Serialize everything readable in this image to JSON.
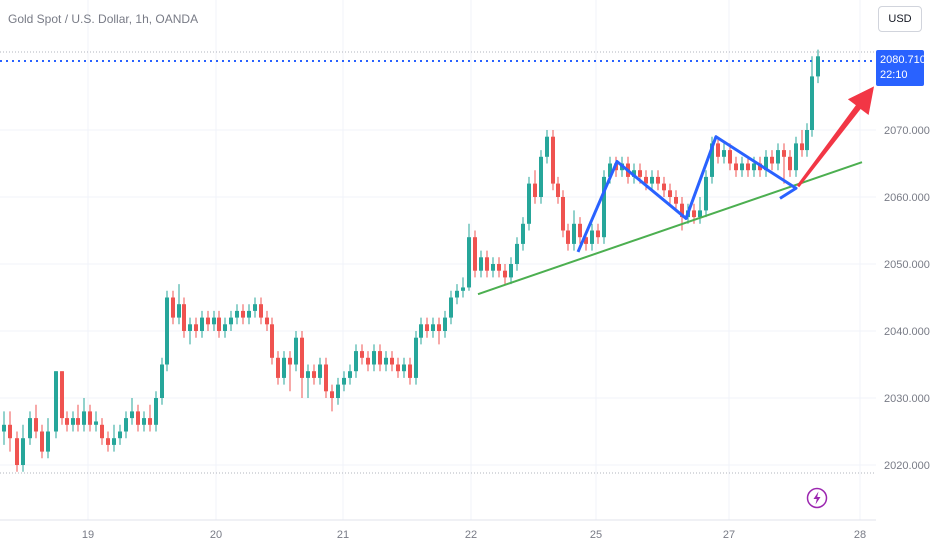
{
  "header": {
    "title": "Gold Spot / U.S. Dollar, 1h, OANDA",
    "currency": "USD"
  },
  "price_tag": {
    "price": "2080.710",
    "countdown": "22:10"
  },
  "icons": {
    "bolt": "lightning-bolt-icon"
  },
  "colors": {
    "up": "#26a69a",
    "down": "#ef5350",
    "price_line": "#2962ff",
    "trendline": "#4caf50",
    "pattern": "#2962ff",
    "arrow": "#f23645"
  },
  "chart_data": {
    "type": "candlestick",
    "x_ticks": [
      {
        "label": "19",
        "t": 88
      },
      {
        "label": "20",
        "t": 216
      },
      {
        "label": "21",
        "t": 343
      },
      {
        "label": "22",
        "t": 471
      },
      {
        "label": "25",
        "t": 596
      },
      {
        "label": "27",
        "t": 729
      },
      {
        "label": "28",
        "t": 860
      }
    ],
    "y_ticks": [
      {
        "label": "2020.000",
        "v": 2020
      },
      {
        "label": "2030.000",
        "v": 2030
      },
      {
        "label": "2040.000",
        "v": 2040
      },
      {
        "label": "2050.000",
        "v": 2050
      },
      {
        "label": "2060.000",
        "v": 2060
      },
      {
        "label": "2070.000",
        "v": 2070
      }
    ],
    "ylim": [
      2012,
      2087
    ],
    "last_price": 2080.71,
    "trendline": [
      [
        478,
        2045.5
      ],
      [
        862,
        2065.2
      ]
    ],
    "zigzag": [
      [
        578,
        2051.8
      ],
      [
        617,
        2065.3
      ],
      [
        686,
        2056.8
      ],
      [
        716,
        2069
      ],
      [
        796,
        2061.3
      ],
      [
        780,
        2059.8
      ]
    ],
    "arrow": {
      "from": [
        798,
        2061.6
      ],
      "to": [
        874,
        2076.5
      ]
    },
    "candles": [
      [
        4,
        2025,
        2026,
        2028,
        2023
      ],
      [
        10,
        2026,
        2024,
        2028,
        2022
      ],
      [
        17,
        2024,
        2020,
        2025,
        2019
      ],
      [
        23,
        2020,
        2024,
        2026,
        2019
      ],
      [
        30,
        2024,
        2027,
        2028,
        2023
      ],
      [
        36,
        2027,
        2025,
        2029,
        2024
      ],
      [
        42,
        2025,
        2022,
        2026,
        2021
      ],
      [
        48,
        2022,
        2025,
        2027,
        2021
      ],
      [
        56,
        2025,
        2034,
        2034,
        2024
      ],
      [
        62,
        2034,
        2027,
        2034,
        2026
      ],
      [
        67,
        2027,
        2026,
        2028,
        2025
      ],
      [
        73,
        2026,
        2027,
        2028,
        2025
      ],
      [
        78,
        2027,
        2026,
        2029,
        2025
      ],
      [
        84,
        2026,
        2028,
        2030,
        2025
      ],
      [
        90,
        2028,
        2026,
        2029,
        2025
      ],
      [
        96,
        2026,
        2026.5,
        2028,
        2025
      ],
      [
        102,
        2026,
        2024,
        2027,
        2023
      ],
      [
        108,
        2024,
        2023,
        2025,
        2022
      ],
      [
        114,
        2023,
        2024,
        2026,
        2022
      ],
      [
        120,
        2024,
        2025,
        2026,
        2023
      ],
      [
        126,
        2025,
        2027,
        2028,
        2024
      ],
      [
        132,
        2027,
        2028,
        2030,
        2026
      ],
      [
        138,
        2028,
        2026,
        2029,
        2025
      ],
      [
        144,
        2026,
        2027,
        2028,
        2025
      ],
      [
        150,
        2027,
        2026,
        2029,
        2025
      ],
      [
        156,
        2026,
        2030,
        2031,
        2025
      ],
      [
        162,
        2030,
        2035,
        2036,
        2029
      ],
      [
        167,
        2035,
        2045,
        2046,
        2034
      ],
      [
        173,
        2045,
        2042,
        2046,
        2041
      ],
      [
        179,
        2042,
        2044,
        2047,
        2041
      ],
      [
        184,
        2044,
        2040,
        2045,
        2039
      ],
      [
        190,
        2040,
        2041,
        2042,
        2038
      ],
      [
        196,
        2041,
        2040,
        2042,
        2039
      ],
      [
        202,
        2040,
        2042,
        2043,
        2039
      ],
      [
        208,
        2042,
        2041,
        2043,
        2040
      ],
      [
        214,
        2041,
        2042,
        2043,
        2040
      ],
      [
        219,
        2042,
        2040,
        2043,
        2039
      ],
      [
        225,
        2040,
        2041,
        2042,
        2039
      ],
      [
        231,
        2041,
        2042,
        2043,
        2040
      ],
      [
        237,
        2042,
        2043,
        2044,
        2041
      ],
      [
        243,
        2043,
        2042,
        2044,
        2041
      ],
      [
        249,
        2042,
        2043,
        2044,
        2041
      ],
      [
        255,
        2043,
        2044,
        2045,
        2042
      ],
      [
        261,
        2044,
        2042,
        2045,
        2041
      ],
      [
        267,
        2042,
        2041,
        2043,
        2040
      ],
      [
        272,
        2041,
        2036,
        2042,
        2035
      ],
      [
        278,
        2036,
        2033,
        2037,
        2032
      ],
      [
        284,
        2033,
        2036,
        2037,
        2032
      ],
      [
        290,
        2036,
        2035,
        2037,
        2031
      ],
      [
        296,
        2035,
        2039,
        2040,
        2034
      ],
      [
        302,
        2039,
        2033,
        2040,
        2030
      ],
      [
        308,
        2033,
        2034,
        2035,
        2030
      ],
      [
        314,
        2034,
        2033,
        2035,
        2032
      ],
      [
        320,
        2033,
        2035,
        2036,
        2032
      ],
      [
        326,
        2035,
        2031,
        2036,
        2030
      ],
      [
        332,
        2031,
        2030,
        2032,
        2028
      ],
      [
        338,
        2030,
        2032,
        2033,
        2029
      ],
      [
        344,
        2032,
        2033,
        2034,
        2031
      ],
      [
        350,
        2033,
        2034,
        2035,
        2032
      ],
      [
        356,
        2034,
        2037,
        2038,
        2033
      ],
      [
        362,
        2037,
        2036,
        2038,
        2035
      ],
      [
        368,
        2036,
        2035,
        2037,
        2034
      ],
      [
        374,
        2035,
        2037,
        2038,
        2034
      ],
      [
        380,
        2037,
        2035,
        2038,
        2034
      ],
      [
        386,
        2035,
        2036,
        2037,
        2034
      ],
      [
        392,
        2036,
        2035,
        2037,
        2034
      ],
      [
        398,
        2035,
        2034,
        2036,
        2033
      ],
      [
        404,
        2034,
        2035,
        2036,
        2033
      ],
      [
        410,
        2035,
        2033,
        2036,
        2032
      ],
      [
        416,
        2033,
        2039,
        2040,
        2032
      ],
      [
        421,
        2039,
        2041,
        2042,
        2038
      ],
      [
        427,
        2041,
        2040,
        2042,
        2039
      ],
      [
        433,
        2040,
        2041,
        2042,
        2039
      ],
      [
        439,
        2041,
        2040,
        2042,
        2038
      ],
      [
        445,
        2040,
        2042,
        2043,
        2039
      ],
      [
        451,
        2042,
        2045,
        2046,
        2041
      ],
      [
        457,
        2045,
        2046,
        2047,
        2044
      ],
      [
        463,
        2046,
        2046.5,
        2048,
        2045
      ],
      [
        469,
        2046.5,
        2054,
        2056,
        2046
      ],
      [
        475,
        2054,
        2049,
        2055,
        2048
      ],
      [
        481,
        2049,
        2051,
        2052,
        2048
      ],
      [
        487,
        2051,
        2049,
        2052,
        2048
      ],
      [
        493,
        2049,
        2050,
        2051,
        2048
      ],
      [
        499,
        2050,
        2049,
        2051,
        2048
      ],
      [
        505,
        2049,
        2048,
        2050,
        2047
      ],
      [
        511,
        2048,
        2050,
        2051,
        2047
      ],
      [
        517,
        2050,
        2053,
        2054,
        2049
      ],
      [
        523,
        2053,
        2056,
        2057,
        2052
      ],
      [
        529,
        2056,
        2062,
        2063,
        2055
      ],
      [
        535,
        2062,
        2060,
        2064,
        2059
      ],
      [
        541,
        2060,
        2066,
        2067,
        2059
      ],
      [
        547,
        2066,
        2069,
        2070,
        2065
      ],
      [
        553,
        2069,
        2062,
        2070,
        2061
      ],
      [
        558,
        2062,
        2060,
        2063,
        2059
      ],
      [
        563,
        2060,
        2055,
        2061,
        2054
      ],
      [
        568,
        2055,
        2053,
        2056,
        2052
      ],
      [
        574,
        2053,
        2056,
        2058,
        2052
      ],
      [
        580,
        2056,
        2054,
        2057,
        2053
      ],
      [
        586,
        2054,
        2053,
        2055,
        2052
      ],
      [
        592,
        2053,
        2055,
        2056,
        2052
      ],
      [
        598,
        2055,
        2054,
        2056,
        2053
      ],
      [
        604,
        2054,
        2063,
        2064,
        2053
      ],
      [
        610,
        2063,
        2065,
        2066,
        2062
      ],
      [
        616,
        2065,
        2064,
        2066,
        2063
      ],
      [
        622,
        2064,
        2065,
        2066,
        2063
      ],
      [
        628,
        2065,
        2063,
        2066,
        2062
      ],
      [
        634,
        2063,
        2064,
        2065,
        2062
      ],
      [
        640,
        2064,
        2063,
        2065,
        2062
      ],
      [
        646,
        2063,
        2062,
        2064,
        2061
      ],
      [
        652,
        2062,
        2063,
        2064,
        2061
      ],
      [
        658,
        2063,
        2062,
        2064,
        2061
      ],
      [
        664,
        2062,
        2061,
        2063,
        2060
      ],
      [
        670,
        2061,
        2060,
        2062,
        2059
      ],
      [
        676,
        2060,
        2059,
        2061,
        2058
      ],
      [
        682,
        2059,
        2057,
        2060,
        2055
      ],
      [
        688,
        2057,
        2058,
        2059,
        2056
      ],
      [
        694,
        2058,
        2057,
        2059,
        2056
      ],
      [
        700,
        2057,
        2058,
        2060,
        2056
      ],
      [
        706,
        2058,
        2063,
        2064,
        2057
      ],
      [
        712,
        2063,
        2068,
        2069,
        2062
      ],
      [
        718,
        2068,
        2066,
        2069,
        2065
      ],
      [
        724,
        2066,
        2067,
        2068,
        2065
      ],
      [
        730,
        2067,
        2065,
        2068,
        2064
      ],
      [
        736,
        2065,
        2064,
        2066,
        2063
      ],
      [
        742,
        2064,
        2065,
        2066,
        2063
      ],
      [
        748,
        2065,
        2064,
        2066,
        2063
      ],
      [
        754,
        2064,
        2065,
        2066,
        2063
      ],
      [
        760,
        2065,
        2064,
        2066,
        2063
      ],
      [
        766,
        2064,
        2066,
        2067,
        2063
      ],
      [
        772,
        2066,
        2065,
        2067,
        2064
      ],
      [
        778,
        2065,
        2067,
        2068,
        2064
      ],
      [
        784,
        2067,
        2066,
        2068,
        2062
      ],
      [
        790,
        2066,
        2064,
        2067,
        2063
      ],
      [
        796,
        2064,
        2068,
        2069,
        2063
      ],
      [
        802,
        2068,
        2067,
        2070,
        2066
      ],
      [
        807,
        2067,
        2070,
        2071,
        2066
      ],
      [
        812,
        2070,
        2078,
        2081,
        2069
      ],
      [
        818,
        2078,
        2081,
        2082,
        2077
      ]
    ]
  }
}
